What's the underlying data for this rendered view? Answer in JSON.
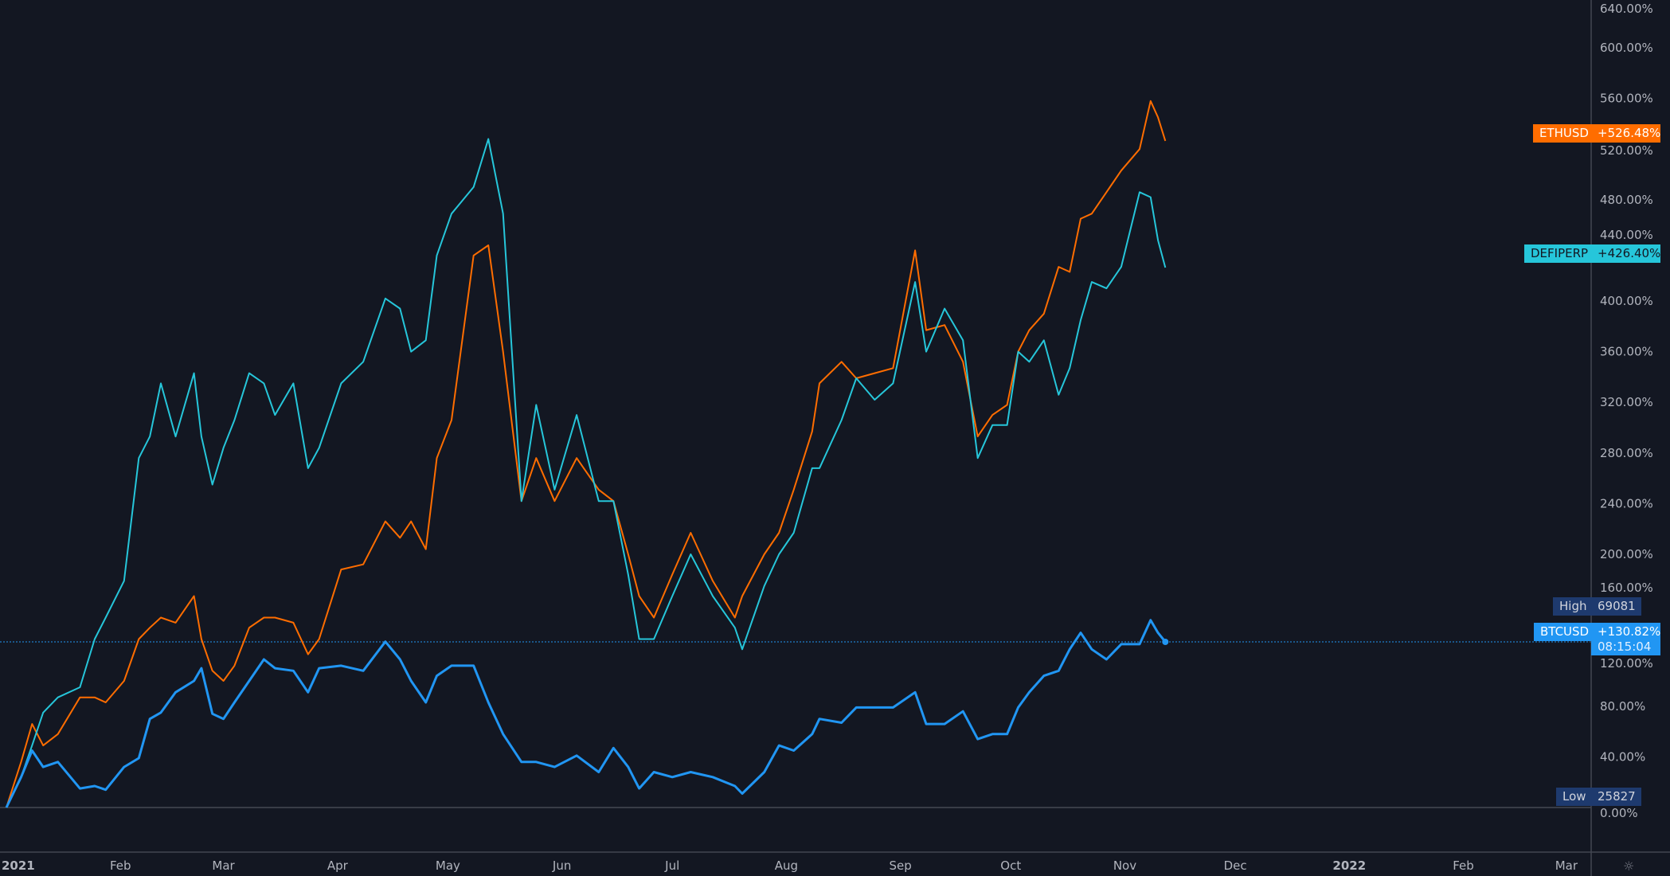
{
  "chart_data": {
    "type": "line",
    "title": "",
    "xlabel": "",
    "ylabel": "",
    "y_scale": "percent change",
    "ylim": [
      0,
      640
    ],
    "grid": false,
    "y_ticks": [
      "0.00%",
      "40.00%",
      "80.00%",
      "120.00%",
      "160.00%",
      "200.00%",
      "240.00%",
      "280.00%",
      "320.00%",
      "360.00%",
      "400.00%",
      "440.00%",
      "480.00%",
      "520.00%",
      "560.00%",
      "600.00%",
      "640.00%"
    ],
    "y_tick_values": [
      0,
      40,
      80,
      120,
      160,
      200,
      240,
      280,
      320,
      360,
      400,
      440,
      480,
      520,
      560,
      600,
      640
    ],
    "x_ticks": [
      {
        "label": "2021",
        "date": "2021-01-01"
      },
      {
        "label": "Feb",
        "date": "2021-02-01"
      },
      {
        "label": "Mar",
        "date": "2021-03-01"
      },
      {
        "label": "Apr",
        "date": "2021-04-01"
      },
      {
        "label": "May",
        "date": "2021-05-01"
      },
      {
        "label": "Jun",
        "date": "2021-06-01"
      },
      {
        "label": "Jul",
        "date": "2021-07-01"
      },
      {
        "label": "Aug",
        "date": "2021-08-01"
      },
      {
        "label": "Sep",
        "date": "2021-09-01"
      },
      {
        "label": "Oct",
        "date": "2021-10-01"
      },
      {
        "label": "Nov",
        "date": "2021-11-01"
      },
      {
        "label": "Dec",
        "date": "2021-12-01"
      },
      {
        "label": "2022",
        "date": "2022-01-01"
      },
      {
        "label": "Feb",
        "date": "2022-02-01"
      },
      {
        "label": "Mar",
        "date": "2022-03-01"
      }
    ],
    "x": [
      "2021-01-01",
      "2021-01-05",
      "2021-01-08",
      "2021-01-11",
      "2021-01-15",
      "2021-01-21",
      "2021-01-25",
      "2021-01-28",
      "2021-02-02",
      "2021-02-06",
      "2021-02-09",
      "2021-02-12",
      "2021-02-16",
      "2021-02-21",
      "2021-02-23",
      "2021-02-26",
      "2021-03-01",
      "2021-03-04",
      "2021-03-08",
      "2021-03-12",
      "2021-03-15",
      "2021-03-20",
      "2021-03-24",
      "2021-03-27",
      "2021-04-02",
      "2021-04-08",
      "2021-04-14",
      "2021-04-18",
      "2021-04-21",
      "2021-04-25",
      "2021-04-28",
      "2021-05-02",
      "2021-05-08",
      "2021-05-12",
      "2021-05-16",
      "2021-05-21",
      "2021-05-25",
      "2021-05-30",
      "2021-06-05",
      "2021-06-11",
      "2021-06-15",
      "2021-06-19",
      "2021-06-22",
      "2021-06-26",
      "2021-07-01",
      "2021-07-06",
      "2021-07-12",
      "2021-07-18",
      "2021-07-20",
      "2021-07-26",
      "2021-07-30",
      "2021-08-03",
      "2021-08-08",
      "2021-08-10",
      "2021-08-16",
      "2021-08-20",
      "2021-08-25",
      "2021-08-30",
      "2021-09-05",
      "2021-09-08",
      "2021-09-13",
      "2021-09-18",
      "2021-09-22",
      "2021-09-26",
      "2021-09-30",
      "2021-10-03",
      "2021-10-06",
      "2021-10-10",
      "2021-10-14",
      "2021-10-17",
      "2021-10-20",
      "2021-10-23",
      "2021-10-27",
      "2021-10-31",
      "2021-11-05",
      "2021-11-08",
      "2021-11-10",
      "2021-11-12"
    ],
    "series": [
      {
        "name": "ETHUSD",
        "color": "#ff6d00",
        "last_label": "+526.48%",
        "values": [
          0,
          36,
          66,
          49,
          58,
          87,
          87,
          83,
          100,
          133,
          142,
          150,
          146,
          167,
          133,
          108,
          100,
          112,
          142,
          150,
          150,
          146,
          121,
          133,
          188,
          192,
          226,
          213,
          226,
          204,
          276,
          306,
          436,
          444,
          360,
          242,
          276,
          242,
          276,
          251,
          242,
          200,
          167,
          150,
          184,
          217,
          179,
          150,
          167,
          200,
          217,
          251,
          297,
          335,
          352,
          339,
          343,
          347,
          440,
          377,
          381,
          352,
          293,
          310,
          318,
          360,
          377,
          390,
          427,
          423,
          465,
          469,
          486,
          503,
          520,
          558,
          545,
          526.48
        ]
      },
      {
        "name": "DEFIPERP",
        "color": "#26c6da",
        "last_label": "+426.40%",
        "values": [
          0,
          24,
          49,
          75,
          87,
          95,
          133,
          150,
          179,
          276,
          293,
          335,
          293,
          343,
          293,
          255,
          284,
          306,
          343,
          335,
          310,
          335,
          268,
          284,
          335,
          352,
          402,
          394,
          360,
          369,
          436,
          469,
          490,
          528,
          469,
          242,
          318,
          251,
          310,
          242,
          242,
          184,
          133,
          133,
          167,
          200,
          167,
          142,
          125,
          175,
          200,
          217,
          268,
          268,
          306,
          339,
          322,
          335,
          415,
          360,
          394,
          369,
          276,
          302,
          302,
          360,
          352,
          369,
          326,
          347,
          385,
          415,
          410,
          427,
          486,
          482,
          448,
          426.4
        ]
      },
      {
        "name": "BTCUSD",
        "color": "#2196f3",
        "last_label": "+130.82%",
        "countdown": "08:15:04",
        "values": [
          0,
          24,
          45,
          32,
          36,
          15,
          17,
          14,
          32,
          39,
          70,
          75,
          91,
          100,
          110,
          74,
          70,
          83,
          100,
          117,
          110,
          108,
          91,
          110,
          112,
          108,
          131,
          117,
          100,
          83,
          104,
          112,
          112,
          83,
          58,
          36,
          36,
          32,
          41,
          28,
          47,
          32,
          15,
          28,
          24,
          28,
          24,
          17,
          11,
          28,
          49,
          45,
          58,
          70,
          67,
          79,
          79,
          79,
          91,
          66,
          66,
          76,
          54,
          58,
          58,
          79,
          91,
          104,
          108,
          125,
          138,
          125,
          117,
          129,
          129,
          148,
          138,
          130.82
        ]
      }
    ],
    "high": {
      "label": "High",
      "value": "69081"
    },
    "low": {
      "label": "Low",
      "value": "25827"
    },
    "colors": {
      "background": "#131722",
      "axis_text": "#b2b5be",
      "high_low_bg": "#1e3a6e"
    }
  },
  "icons": {
    "settings": "gear-icon"
  }
}
